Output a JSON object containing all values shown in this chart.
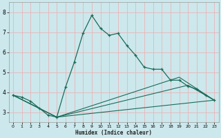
{
  "xlabel": "Humidex (Indice chaleur)",
  "bg_color": "#cce8ec",
  "grid_color": "#e8b4b8",
  "line_color": "#1a6b5a",
  "xlim": [
    -0.5,
    23.5
  ],
  "ylim": [
    2.5,
    8.5
  ],
  "yticks": [
    3,
    4,
    5,
    6,
    7,
    8
  ],
  "xticks": [
    0,
    1,
    2,
    3,
    4,
    5,
    6,
    7,
    8,
    9,
    10,
    11,
    12,
    13,
    14,
    15,
    16,
    17,
    18,
    19,
    20,
    21,
    22,
    23
  ],
  "series1_x": [
    0,
    1,
    2,
    3,
    4,
    5,
    6,
    7,
    8,
    9,
    10,
    11,
    12,
    13,
    14,
    15,
    16,
    17,
    18,
    19,
    20,
    21,
    22,
    23
  ],
  "series1_y": [
    3.85,
    3.75,
    3.55,
    3.2,
    2.85,
    2.75,
    4.25,
    5.5,
    6.95,
    7.85,
    7.2,
    6.85,
    6.95,
    6.35,
    5.85,
    5.25,
    5.15,
    5.15,
    4.6,
    4.6,
    4.3,
    4.15,
    3.85,
    3.6
  ],
  "series2_x": [
    0,
    5,
    23
  ],
  "series2_y": [
    3.85,
    2.75,
    3.6
  ],
  "series3_x": [
    0,
    5,
    19,
    23
  ],
  "series3_y": [
    3.85,
    2.75,
    4.75,
    3.6
  ],
  "series4_x": [
    0,
    5,
    20,
    23
  ],
  "series4_y": [
    3.85,
    2.75,
    4.35,
    3.6
  ]
}
